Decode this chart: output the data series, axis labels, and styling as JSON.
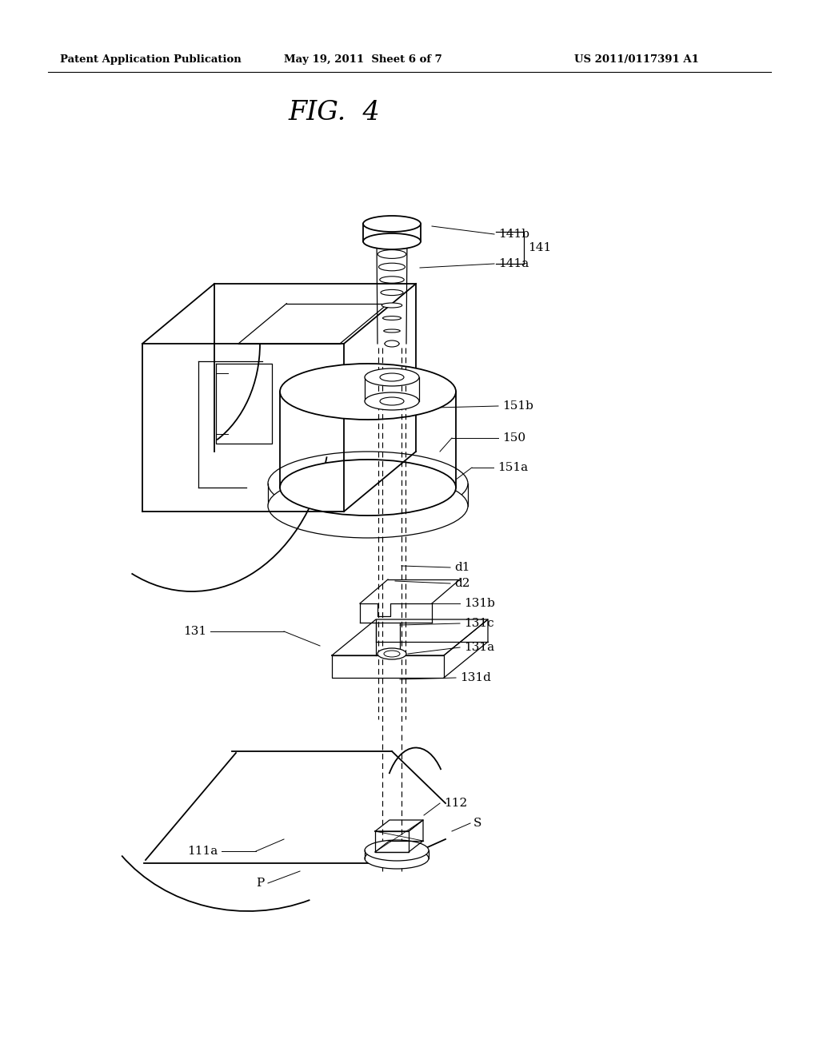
{
  "bg_color": "#ffffff",
  "header_left": "Patent Application Publication",
  "header_center": "May 19, 2011  Sheet 6 of 7",
  "header_right": "US 2011/0117391 A1",
  "fig_title": "FIG.  4"
}
